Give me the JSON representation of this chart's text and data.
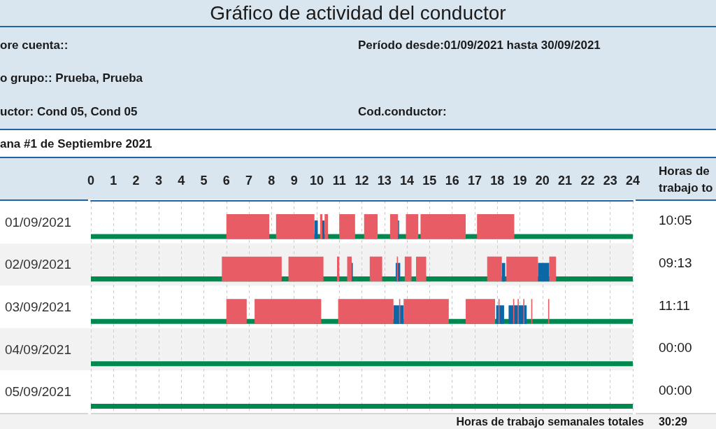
{
  "chart_data": {
    "type": "bar",
    "orientation": "horizontal",
    "title": "Gráfico de actividad del conductor",
    "annotations": [
      "ore cuenta::",
      "Período desde:01/09/2021 hasta 30/09/2021",
      "o grupo:: Prueba, Prueba",
      "uctor: Cond 05, Cond 05",
      "Cod.conductor:",
      "ana #1 de Septiembre 2021",
      "Horas de trabajo to",
      "10:05",
      "09:13",
      "11:11",
      "00:00",
      "00:00",
      "Horas de trabajo semanales totales",
      "30:29"
    ],
    "categories": [
      "01/09/2021",
      "02/09/2021",
      "03/09/2021",
      "04/09/2021",
      "05/09/2021"
    ],
    "series": [
      {
        "color": "#00894f",
        "base": [
          0,
          0,
          0,
          0,
          0
        ],
        "values": [
          24,
          24,
          24,
          24,
          24
        ]
      },
      {
        "color": "#0b67a5",
        "base": [
          9.9,
          11.55,
          13.4,
          null,
          null
        ],
        "values": [
          0.15,
          0.05,
          0.45,
          null,
          null
        ]
      },
      {
        "color": "#0b67a5",
        "base": [
          10.25,
          13.5,
          17.95,
          null,
          null
        ],
        "values": [
          0.1,
          0.2,
          0.35,
          null,
          null
        ]
      },
      {
        "color": "#0b67a5",
        "base": [
          13.6,
          18.2,
          18.5,
          null,
          null
        ],
        "values": [
          0.05,
          0.15,
          0.8,
          null,
          null
        ]
      },
      {
        "color": "#0b67a5",
        "base": [
          null,
          19.8,
          null,
          null,
          null
        ],
        "values": [
          null,
          0.5,
          null,
          null,
          null
        ]
      },
      {
        "color": "#e85c66",
        "base": [
          6.0,
          5.8,
          6.0,
          null,
          null
        ],
        "values": [
          1.9,
          2.65,
          0.9,
          null,
          null
        ]
      },
      {
        "color": "#e85c66",
        "base": [
          8.2,
          8.75,
          7.25,
          null,
          null
        ],
        "values": [
          1.7,
          1.55,
          2.95,
          null,
          null
        ]
      },
      {
        "color": "#e85c66",
        "base": [
          10.15,
          10.9,
          10.95,
          null,
          null
        ],
        "values": [
          0.1,
          0.1,
          2.45,
          null,
          null
        ]
      },
      {
        "color": "#e85c66",
        "base": [
          10.35,
          11.35,
          13.65,
          null,
          null
        ],
        "values": [
          0.15,
          0.2,
          0.05,
          null,
          null
        ]
      },
      {
        "color": "#e85c66",
        "base": [
          11.0,
          12.35,
          13.85,
          null,
          null
        ],
        "values": [
          0.7,
          0.55,
          2.0,
          null,
          null
        ]
      },
      {
        "color": "#e85c66",
        "base": [
          12.1,
          13.55,
          16.6,
          null,
          null
        ],
        "values": [
          0.6,
          0.05,
          1.3,
          null,
          null
        ]
      },
      {
        "color": "#e85c66",
        "base": [
          13.25,
          13.9,
          18.05,
          null,
          null
        ],
        "values": [
          0.35,
          0.3,
          0.05,
          null,
          null
        ]
      },
      {
        "color": "#e85c66",
        "base": [
          13.95,
          14.4,
          18.7,
          null,
          null
        ],
        "values": [
          0.55,
          0.45,
          0.05,
          null,
          null
        ]
      },
      {
        "color": "#e85c66",
        "base": [
          14.6,
          17.55,
          18.9,
          null,
          null
        ],
        "values": [
          2.0,
          0.65,
          0.05,
          null,
          null
        ]
      },
      {
        "color": "#e85c66",
        "base": [
          17.1,
          18.4,
          19.15,
          null,
          null
        ],
        "values": [
          1.65,
          1.4,
          0.05,
          null,
          null
        ]
      },
      {
        "color": "#e85c66",
        "base": [
          null,
          20.3,
          19.5,
          null,
          null
        ],
        "values": [
          null,
          0.3,
          0.05,
          null,
          null
        ]
      },
      {
        "color": "#e85c66",
        "base": [
          null,
          null,
          20.25,
          null,
          null
        ],
        "values": [
          null,
          null,
          0.05,
          null,
          null
        ]
      }
    ],
    "xlim": [
      0,
      24
    ],
    "xticks": [
      0,
      1,
      2,
      3,
      4,
      5,
      6,
      7,
      8,
      9,
      10,
      11,
      12,
      13,
      14,
      15,
      16,
      17,
      18,
      19,
      20,
      21,
      22,
      23,
      24
    ],
    "grid": "x"
  }
}
